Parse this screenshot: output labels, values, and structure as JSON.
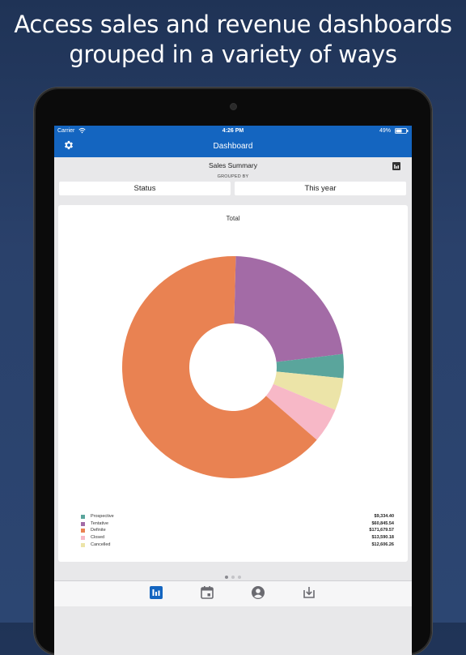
{
  "headline": {
    "line1": "Access sales and revenue dashboards",
    "line2": "grouped in a variety of ways"
  },
  "statusbar": {
    "carrier": "Carrier",
    "time": "4:26 PM",
    "battery": "49%"
  },
  "navbar": {
    "title": "Dashboard",
    "left_icon": "gear-icon",
    "right_icon": "bar-chart-icon"
  },
  "summary": {
    "title": "Sales Summary",
    "grouped_by_label": "GROUPED BY",
    "group_field": "Status",
    "period": "This year"
  },
  "chart_data": {
    "type": "pie",
    "title": "Total",
    "donut": true,
    "legend_position": "bottom",
    "series": [
      {
        "name": "Prospective",
        "value": 9334.4,
        "display": "$9,334.40",
        "color": "#5aa59c"
      },
      {
        "name": "Tentative",
        "value": 60845.54,
        "display": "$60,845.54",
        "color": "#a36ba6"
      },
      {
        "name": "Definite",
        "value": 171679.57,
        "display": "$171,679.57",
        "color": "#e98252"
      },
      {
        "name": "Closed",
        "value": 13590.18,
        "display": "$13,590.18",
        "color": "#f7b8c7"
      },
      {
        "name": "Cancelled",
        "value": 12606.26,
        "display": "$12,606.26",
        "color": "#ece4a8"
      }
    ]
  },
  "pager": {
    "pages": 3,
    "current": 1
  },
  "tabbar": {
    "tabs": [
      {
        "icon": "bar-chart-icon",
        "active": true
      },
      {
        "icon": "calendar-icon",
        "active": false
      },
      {
        "icon": "user-circle-icon",
        "active": false
      },
      {
        "icon": "download-icon",
        "active": false
      }
    ],
    "active_color": "#1465c0",
    "inactive_color": "#6a6a70"
  }
}
